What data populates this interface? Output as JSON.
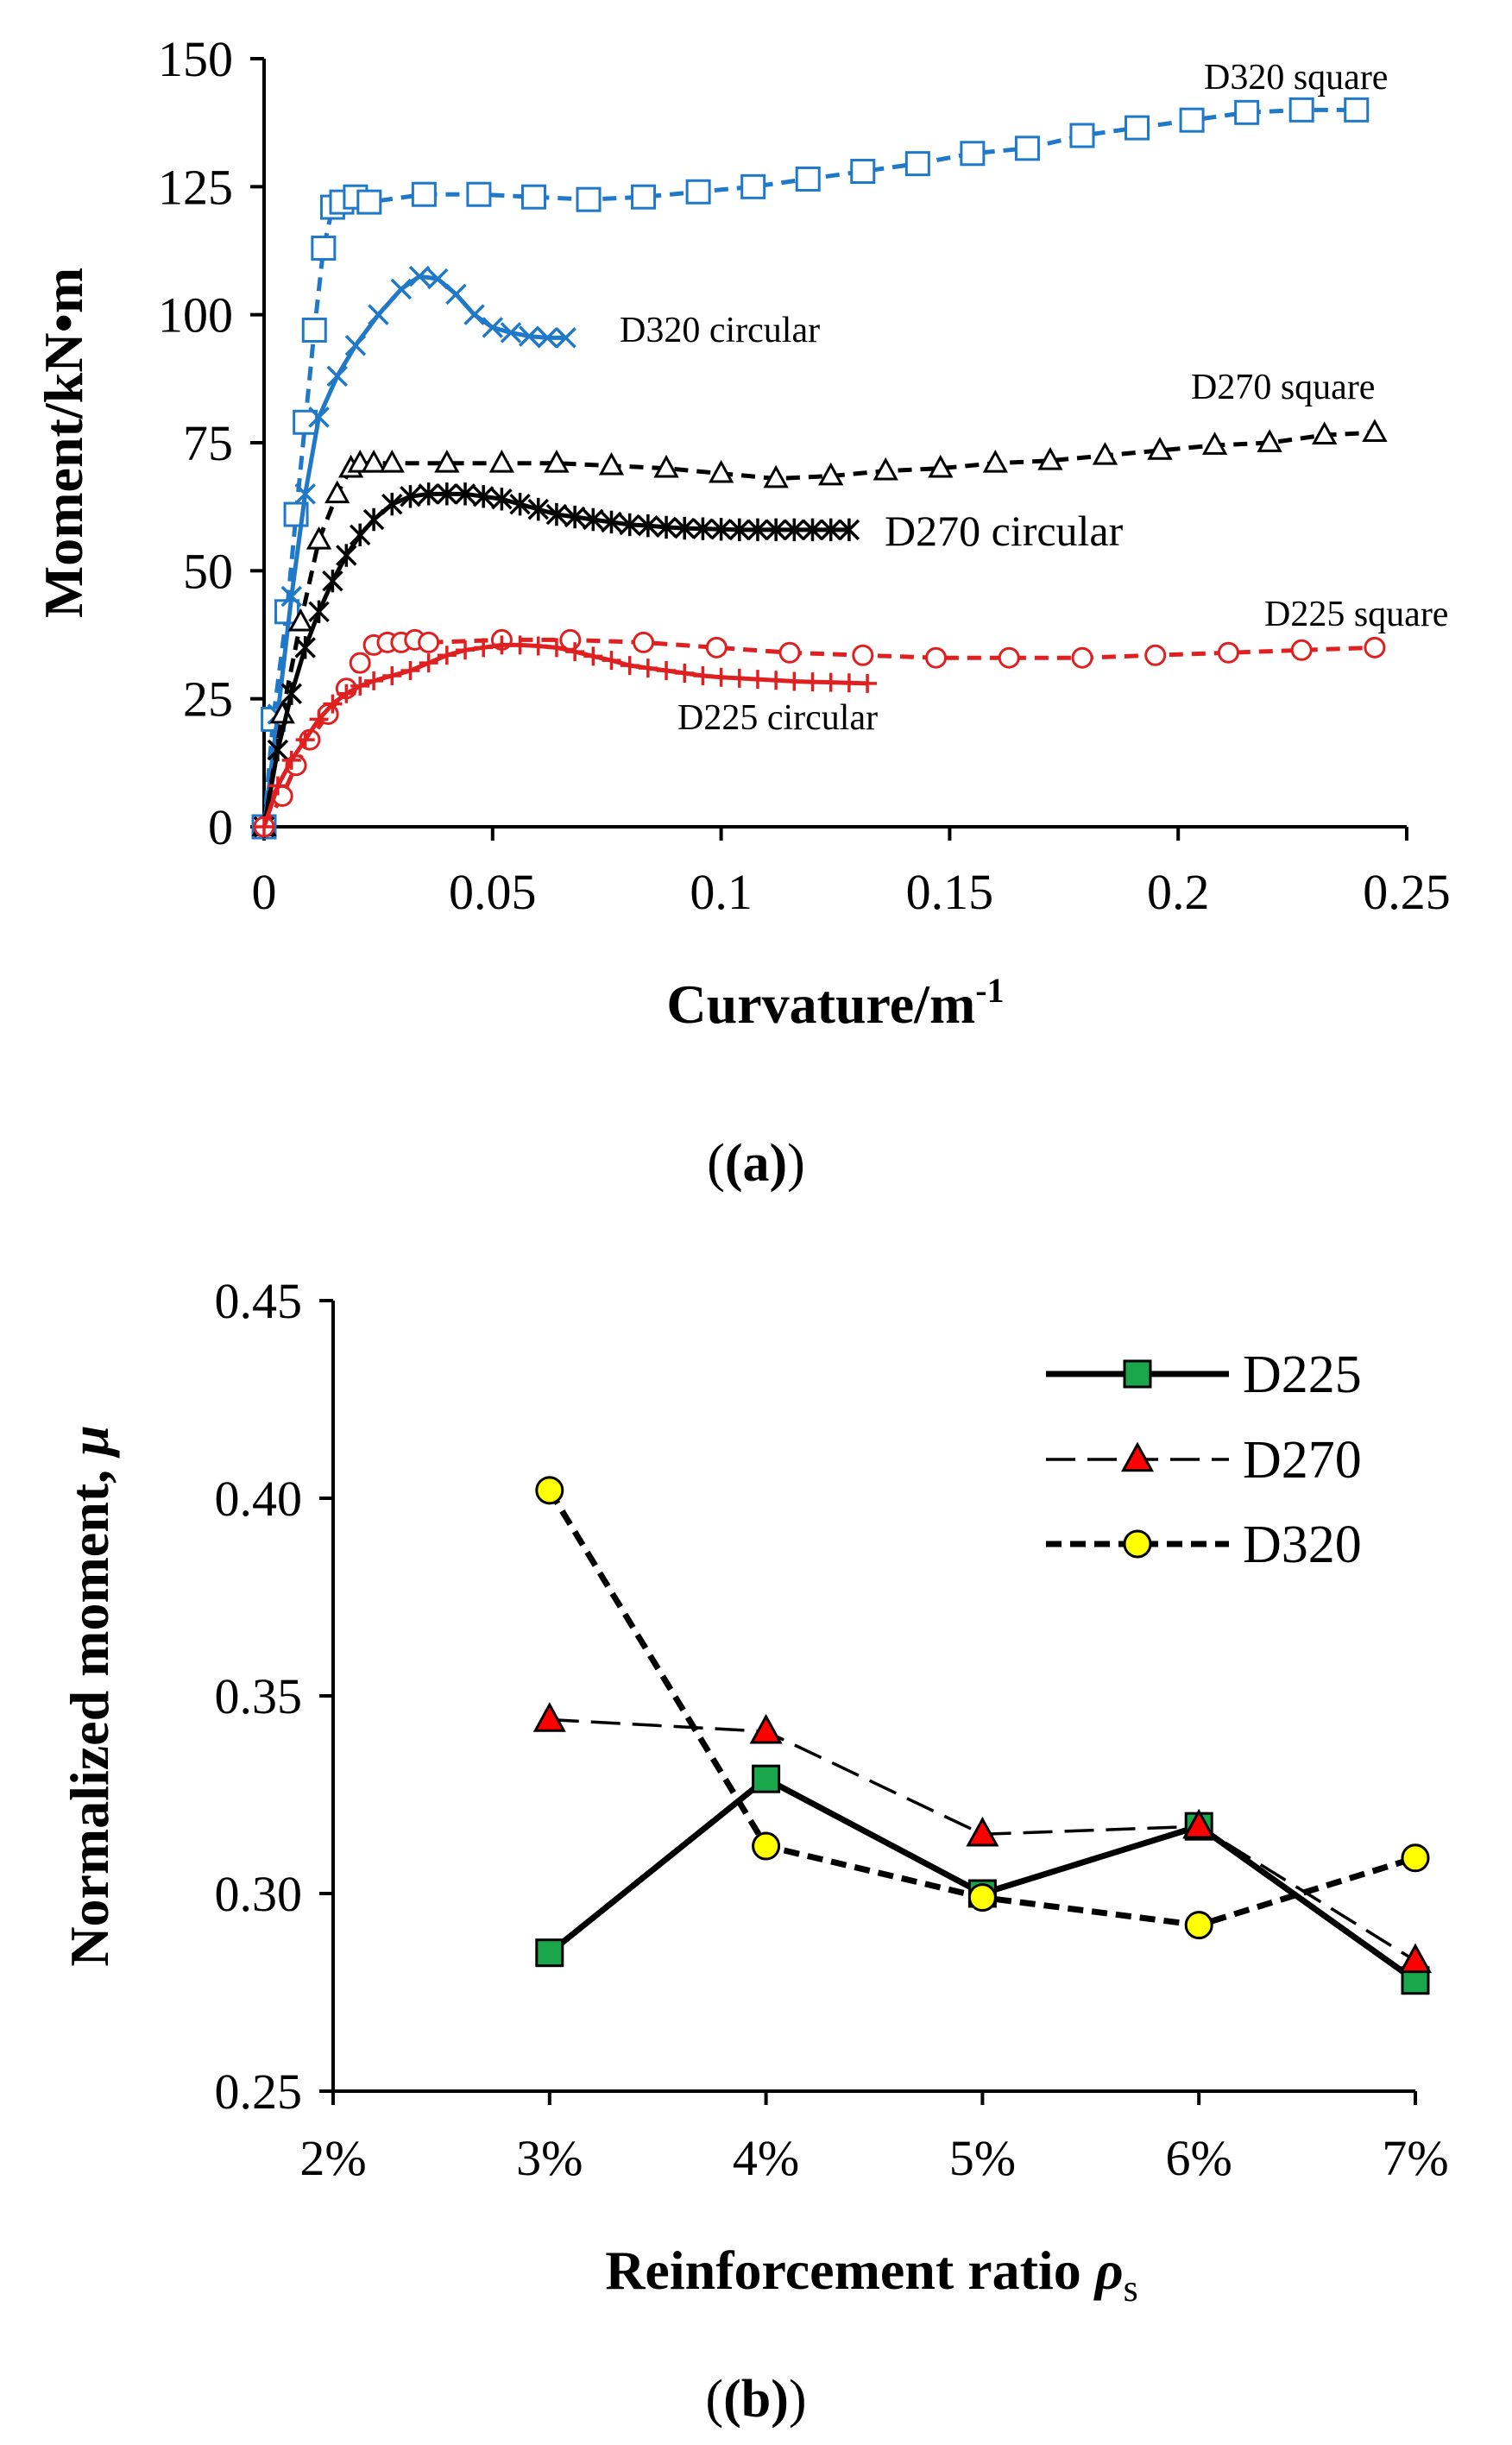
{
  "figure": {
    "caption_a": "(a)",
    "caption_b": "(b)"
  },
  "chart_data": [
    {
      "id": "a",
      "type": "line",
      "title": "",
      "xlabel": "Curvature/m",
      "xlabel_sup": "-1",
      "ylabel": "Moment/kN•m",
      "xlim": [
        0,
        0.25
      ],
      "ylim": [
        0,
        150
      ],
      "xticks": [
        0,
        0.05,
        0.1,
        0.15,
        0.2,
        0.25
      ],
      "xtick_labels": [
        "0",
        "0.05",
        "0.1",
        "0.15",
        "0.2",
        "0.25"
      ],
      "yticks": [
        0,
        25,
        50,
        75,
        100,
        125,
        150
      ],
      "ytick_labels": [
        "0",
        "25",
        "50",
        "75",
        "100",
        "125",
        "150"
      ],
      "series": [
        {
          "name": "D320 square",
          "color": "#1f78c8",
          "dash": "dashed",
          "marker": "square",
          "x": [
            0,
            0.002,
            0.005,
            0.007,
            0.009,
            0.011,
            0.013,
            0.015,
            0.017,
            0.02,
            0.023,
            0.035,
            0.047,
            0.059,
            0.071,
            0.083,
            0.095,
            0.107,
            0.119,
            0.131,
            0.143,
            0.155,
            0.167,
            0.179,
            0.191,
            0.203,
            0.215,
            0.227,
            0.239
          ],
          "y": [
            0,
            21,
            42,
            61,
            79,
            97,
            113,
            121,
            122,
            123,
            122,
            123.5,
            123.5,
            123,
            122.5,
            123,
            124,
            125,
            126.5,
            128,
            129.5,
            131.5,
            132.5,
            135,
            136.5,
            138,
            139.5,
            140,
            140
          ]
        },
        {
          "name": "D320 circular",
          "color": "#1f78c8",
          "dash": "solid",
          "marker": "x",
          "x": [
            0,
            0.003,
            0.006,
            0.009,
            0.012,
            0.016,
            0.02,
            0.025,
            0.03,
            0.034,
            0.038,
            0.042,
            0.046,
            0.05,
            0.054,
            0.058,
            0.062,
            0.066
          ],
          "y": [
            0,
            22,
            45,
            65,
            80,
            88,
            94,
            100,
            105,
            107.5,
            107,
            104,
            100,
            97.5,
            96.5,
            95.8,
            95.5,
            95.5
          ]
        },
        {
          "name": "D270 square",
          "color": "#000000",
          "dash": "dashed",
          "marker": "triangle",
          "x": [
            0,
            0.004,
            0.008,
            0.012,
            0.016,
            0.019,
            0.021,
            0.024,
            0.028,
            0.04,
            0.052,
            0.064,
            0.076,
            0.088,
            0.1,
            0.112,
            0.124,
            0.136,
            0.148,
            0.16,
            0.172,
            0.184,
            0.196,
            0.208,
            0.22,
            0.232,
            0.243
          ],
          "y": [
            0,
            22,
            40,
            56,
            65,
            70,
            71,
            71,
            71,
            71,
            71,
            71,
            70.5,
            70,
            69,
            68,
            68.5,
            69.5,
            70,
            71,
            71.5,
            72.5,
            73.5,
            74.5,
            75,
            76.5,
            77
          ]
        },
        {
          "name": "D270 circular",
          "color": "#000000",
          "dash": "solid",
          "marker": "asterisk",
          "x": [
            0,
            0.003,
            0.006,
            0.009,
            0.012,
            0.015,
            0.018,
            0.021,
            0.024,
            0.028,
            0.032,
            0.036,
            0.04,
            0.044,
            0.048,
            0.052,
            0.056,
            0.06,
            0.064,
            0.068,
            0.072,
            0.076,
            0.08,
            0.084,
            0.088,
            0.092,
            0.096,
            0.1,
            0.104,
            0.108,
            0.112,
            0.116,
            0.12,
            0.124,
            0.128
          ],
          "y": [
            0,
            15,
            26,
            35,
            42,
            48,
            53,
            57,
            60,
            63,
            64.5,
            65,
            65,
            65,
            64.5,
            64,
            63,
            62,
            61,
            60.5,
            60,
            59.5,
            59,
            58.8,
            58.5,
            58.3,
            58.2,
            58.1,
            58,
            58,
            58,
            58,
            58,
            58,
            58
          ]
        },
        {
          "name": "D225 square",
          "color": "#e02020",
          "dash": "dashed",
          "marker": "circle",
          "x": [
            0,
            0.004,
            0.007,
            0.01,
            0.014,
            0.018,
            0.021,
            0.024,
            0.027,
            0.03,
            0.033,
            0.036,
            0.052,
            0.067,
            0.083,
            0.099,
            0.115,
            0.131,
            0.147,
            0.163,
            0.179,
            0.195,
            0.211,
            0.227,
            0.243
          ],
          "y": [
            0,
            6,
            12,
            17,
            22,
            27,
            32,
            35.5,
            36,
            36,
            36.5,
            36,
            36.5,
            36.5,
            36,
            35,
            34,
            33.5,
            33,
            33,
            33,
            33.5,
            34,
            34.5,
            35
          ]
        },
        {
          "name": "D225 circular",
          "color": "#e02020",
          "dash": "solid",
          "marker": "plus",
          "x": [
            0,
            0.003,
            0.006,
            0.009,
            0.012,
            0.015,
            0.018,
            0.021,
            0.024,
            0.028,
            0.032,
            0.036,
            0.04,
            0.044,
            0.048,
            0.052,
            0.056,
            0.06,
            0.064,
            0.068,
            0.072,
            0.076,
            0.08,
            0.084,
            0.088,
            0.092,
            0.096,
            0.1,
            0.104,
            0.108,
            0.112,
            0.116,
            0.12,
            0.124,
            0.128,
            0.132
          ],
          "y": [
            0,
            8,
            13,
            17,
            21,
            24,
            26,
            27.5,
            28.5,
            29.5,
            30.5,
            32,
            33.5,
            34.5,
            35,
            35.5,
            35.5,
            35.3,
            35,
            34.2,
            33.3,
            32.5,
            31.5,
            31,
            30.5,
            30,
            29.5,
            29.2,
            29,
            28.8,
            28.6,
            28.4,
            28.3,
            28.2,
            28.1,
            28
          ]
        }
      ],
      "annotations": [
        {
          "text": "D320 square",
          "series": "D320 square"
        },
        {
          "text": "D320 circular",
          "series": "D320 circular"
        },
        {
          "text": "D270 square",
          "series": "D270 square"
        },
        {
          "text": "D270 circular",
          "series": "D270 circular"
        },
        {
          "text": "D225 square",
          "series": "D225 square"
        },
        {
          "text": "D225 circular",
          "series": "D225 circular"
        }
      ]
    },
    {
      "id": "b",
      "type": "line",
      "title": "",
      "xlabel": "Reinforcement ratio ",
      "xlabel_symbol": "ρ",
      "xlabel_sub": "s",
      "ylabel": "Normalized moment, ",
      "ylabel_symbol": "μ",
      "categories": [
        "2%",
        "3%",
        "4%",
        "5%",
        "6%",
        "7%"
      ],
      "ylim": [
        0.25,
        0.45
      ],
      "yticks": [
        0.25,
        0.3,
        0.35,
        0.4,
        0.45
      ],
      "ytick_labels": [
        "0.25",
        "0.30",
        "0.35",
        "0.40",
        "0.45"
      ],
      "legend_position": "top-right",
      "series": [
        {
          "name": "D225",
          "color": "#000000",
          "marker": "square",
          "marker_fill": "#1aa64a",
          "dash": "solid",
          "x": [
            "3%",
            "4%",
            "5%",
            "6%",
            "7%"
          ],
          "values": [
            0.285,
            0.329,
            0.3,
            0.317,
            0.278
          ]
        },
        {
          "name": "D270",
          "color": "#000000",
          "marker": "triangle",
          "marker_fill": "#ff0000",
          "dash": "longdash",
          "x": [
            "3%",
            "4%",
            "5%",
            "6%",
            "7%"
          ],
          "values": [
            0.344,
            0.341,
            0.315,
            0.317,
            0.283
          ]
        },
        {
          "name": "D320",
          "color": "#000000",
          "marker": "circle",
          "marker_fill": "#ffff00",
          "dash": "dashed",
          "x": [
            "3%",
            "4%",
            "5%",
            "6%",
            "7%"
          ],
          "values": [
            0.402,
            0.312,
            0.299,
            0.292,
            0.309
          ]
        }
      ]
    }
  ]
}
